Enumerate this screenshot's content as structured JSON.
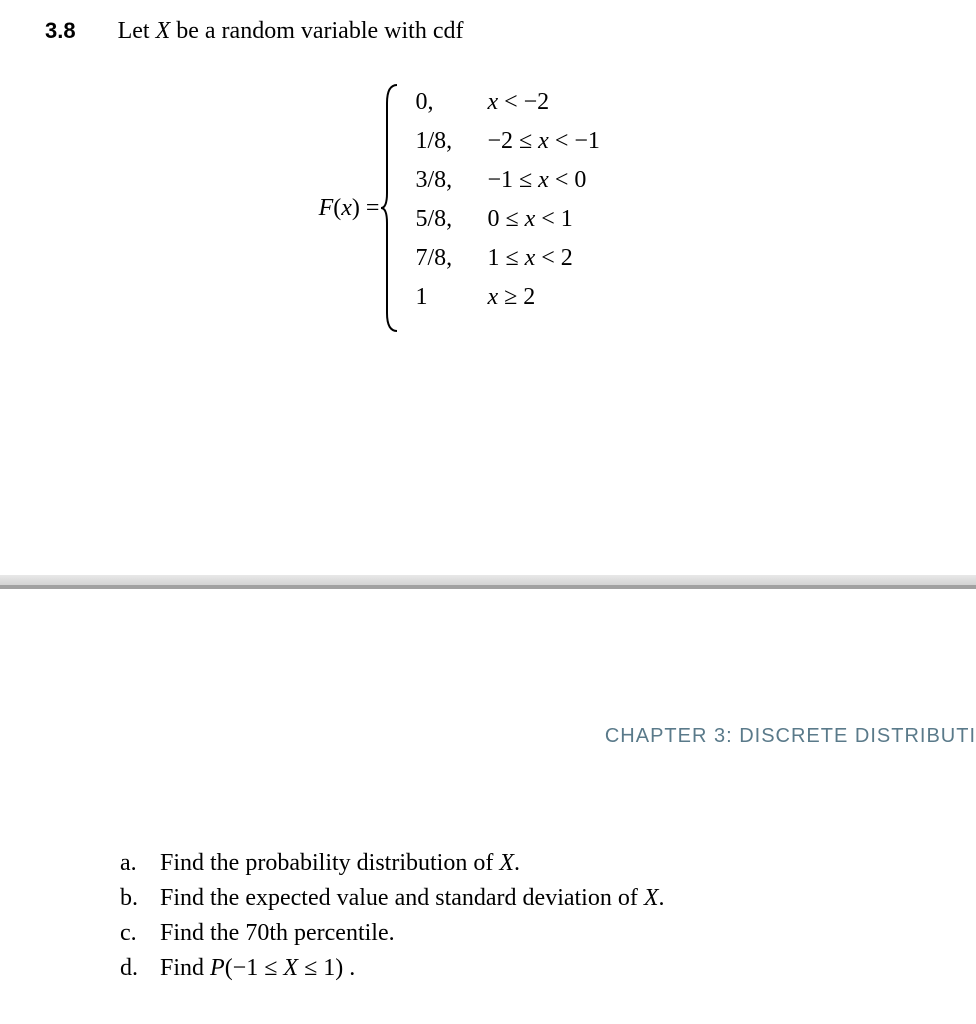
{
  "problem": {
    "number": "3.8",
    "intro_prefix": "Let ",
    "intro_var": "X",
    "intro_suffix": " be a random variable with cdf"
  },
  "equation": {
    "function_label_F": "F",
    "function_label_open": "(",
    "function_label_x": "x",
    "function_label_close": ")",
    "equals": " = ",
    "brace_color": "#000000",
    "cases": [
      {
        "value": "0,",
        "cond_prefix": "",
        "cond_var1": "x",
        "cond_op1": " < −2",
        "cond_var2": "",
        "cond_op2": ""
      },
      {
        "value": "1/8,",
        "cond_prefix": "−2 ≤ ",
        "cond_var1": "x",
        "cond_op1": " < −1",
        "cond_var2": "",
        "cond_op2": ""
      },
      {
        "value": "3/8,",
        "cond_prefix": "−1 ≤ ",
        "cond_var1": "x",
        "cond_op1": " < 0",
        "cond_var2": "",
        "cond_op2": ""
      },
      {
        "value": "5/8,",
        "cond_prefix": "0 ≤ ",
        "cond_var1": "x",
        "cond_op1": " < 1",
        "cond_var2": "",
        "cond_op2": ""
      },
      {
        "value": "7/8,",
        "cond_prefix": "1 ≤ ",
        "cond_var1": "x",
        "cond_op1": " < 2",
        "cond_var2": "",
        "cond_op2": ""
      },
      {
        "value": "1",
        "cond_prefix": "",
        "cond_var1": "x",
        "cond_op1": " ≥ 2",
        "cond_var2": "",
        "cond_op2": ""
      }
    ]
  },
  "chapter_header": "CHAPTER 3: DISCRETE DISTRIBUTI",
  "sub_questions": [
    {
      "label": "a.",
      "text_before": "Find the probability distribution of ",
      "var": "X",
      "text_after": "."
    },
    {
      "label": "b.",
      "text_before": "Find the expected value and standard deviation of ",
      "var": "X",
      "text_after": "."
    },
    {
      "label": "c.",
      "text_before": "Find the 70th percentile.",
      "var": "",
      "text_after": ""
    },
    {
      "label": "d.",
      "text_before": "Find ",
      "var": "P",
      "text_after": "(−1 ≤ X ≤ 1) ."
    }
  ],
  "colors": {
    "text": "#000000",
    "chapter_header": "#5a7a8a",
    "divider_light": "#e8e8e8",
    "divider_dark": "#a1a1a1",
    "background": "#ffffff"
  },
  "typography": {
    "body_fontsize": 24,
    "problem_number_fontsize": 22,
    "chapter_header_fontsize": 20
  }
}
